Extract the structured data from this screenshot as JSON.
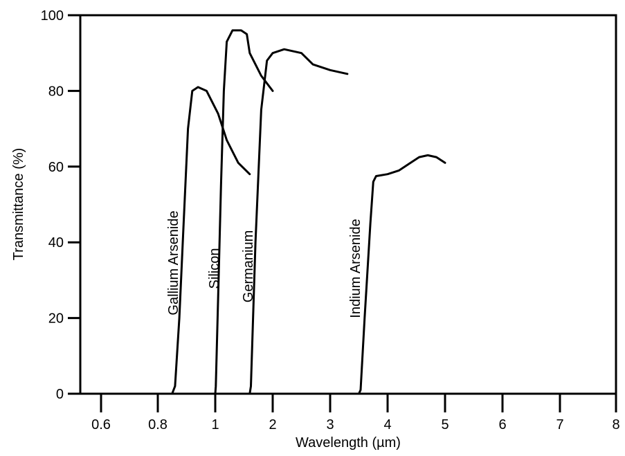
{
  "chart_data": {
    "type": "line",
    "title": "",
    "xlabel": "Wavelength (µm)",
    "ylabel": "Transmittance (%)",
    "ylim": [
      0,
      100
    ],
    "grid": false,
    "legend": "none",
    "x_ticks": [
      {
        "pos": 0,
        "label": "0.6"
      },
      {
        "pos": 1,
        "label": "0.8"
      },
      {
        "pos": 2,
        "label": "1"
      },
      {
        "pos": 3,
        "label": "2"
      },
      {
        "pos": 4,
        "label": "3"
      },
      {
        "pos": 5,
        "label": "4"
      },
      {
        "pos": 6,
        "label": "5"
      },
      {
        "pos": 7,
        "label": "6"
      },
      {
        "pos": 8,
        "label": "7"
      },
      {
        "pos": 9,
        "label": "8"
      }
    ],
    "y_ticks": [
      {
        "value": 0,
        "label": "0"
      },
      {
        "value": 20,
        "label": "20"
      },
      {
        "value": 40,
        "label": "40"
      },
      {
        "value": 60,
        "label": "60"
      },
      {
        "value": 80,
        "label": "80"
      },
      {
        "value": 100,
        "label": "100"
      }
    ],
    "series": [
      {
        "name": "Gallium Arsenide",
        "x": [
          0.85,
          0.86,
          0.875,
          0.89,
          0.905,
          0.92,
          0.94,
          0.97,
          1.05,
          1.2,
          1.4,
          1.6
        ],
        "y": [
          0,
          2,
          20,
          45,
          70,
          80,
          81,
          80,
          74,
          67,
          61,
          58
        ]
      },
      {
        "name": "Silicon",
        "x": [
          1.0,
          1.01,
          1.05,
          1.1,
          1.15,
          1.2,
          1.3,
          1.45,
          1.55,
          1.6,
          1.7,
          1.8,
          2.0
        ],
        "y": [
          0,
          2,
          25,
          55,
          80,
          93,
          96,
          96,
          95,
          90,
          87,
          84,
          80
        ]
      },
      {
        "name": "Germanium",
        "x": [
          1.6,
          1.62,
          1.7,
          1.8,
          1.9,
          2.0,
          2.2,
          2.5,
          2.7,
          3.0,
          3.3
        ],
        "y": [
          0,
          2,
          40,
          75,
          88,
          90,
          91,
          90,
          87,
          85.5,
          84.5
        ]
      },
      {
        "name": "Indium Arsenide",
        "x": [
          3.5,
          3.53,
          3.6,
          3.7,
          3.75,
          3.8,
          4.0,
          4.2,
          4.4,
          4.55,
          4.7,
          4.85,
          5.0
        ],
        "y": [
          0,
          1,
          20,
          45,
          56,
          57.5,
          58,
          59,
          61,
          62.5,
          63,
          62.5,
          61
        ]
      }
    ]
  }
}
